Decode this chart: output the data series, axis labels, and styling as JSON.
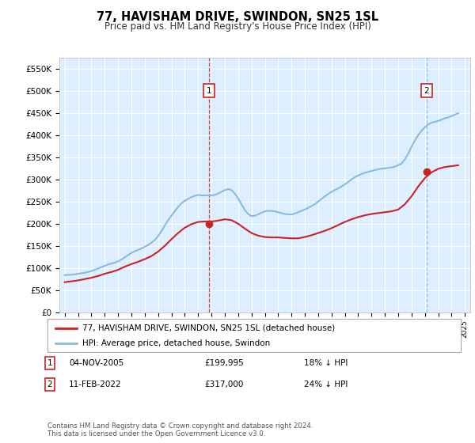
{
  "title": "77, HAVISHAM DRIVE, SWINDON, SN25 1SL",
  "subtitle": "Price paid vs. HM Land Registry's House Price Index (HPI)",
  "bg_color": "#ffffff",
  "plot_bg_color": "#ddeeff",
  "hpi_color": "#88bbdd",
  "price_color": "#cc2222",
  "ylim": [
    0,
    575000
  ],
  "yticks": [
    0,
    50000,
    100000,
    150000,
    200000,
    250000,
    300000,
    350000,
    400000,
    450000,
    500000,
    550000
  ],
  "ytick_labels": [
    "£0",
    "£50K",
    "£100K",
    "£150K",
    "£200K",
    "£250K",
    "£300K",
    "£350K",
    "£400K",
    "£450K",
    "£500K",
    "£550K"
  ],
  "transaction1": {
    "year": 2005.84,
    "price": 199995,
    "label": "1"
  },
  "transaction2": {
    "year": 2022.12,
    "price": 317000,
    "label": "2"
  },
  "legend_house_label": "77, HAVISHAM DRIVE, SWINDON, SN25 1SL (detached house)",
  "legend_hpi_label": "HPI: Average price, detached house, Swindon",
  "note1_label": "1",
  "note1_date": "04-NOV-2005",
  "note1_price": "£199,995",
  "note1_hpi": "18% ↓ HPI",
  "note2_label": "2",
  "note2_date": "11-FEB-2022",
  "note2_price": "£317,000",
  "note2_hpi": "24% ↓ HPI",
  "footer": "Contains HM Land Registry data © Crown copyright and database right 2024.\nThis data is licensed under the Open Government Licence v3.0.",
  "hpi_years": [
    1995,
    1995.25,
    1995.5,
    1995.75,
    1996,
    1996.25,
    1996.5,
    1996.75,
    1997,
    1997.25,
    1997.5,
    1997.75,
    1998,
    1998.25,
    1998.5,
    1998.75,
    1999,
    1999.25,
    1999.5,
    1999.75,
    2000,
    2000.25,
    2000.5,
    2000.75,
    2001,
    2001.25,
    2001.5,
    2001.75,
    2002,
    2002.25,
    2002.5,
    2002.75,
    2003,
    2003.25,
    2003.5,
    2003.75,
    2004,
    2004.25,
    2004.5,
    2004.75,
    2005,
    2005.25,
    2005.5,
    2005.75,
    2006,
    2006.25,
    2006.5,
    2006.75,
    2007,
    2007.25,
    2007.5,
    2007.75,
    2008,
    2008.25,
    2008.5,
    2008.75,
    2009,
    2009.25,
    2009.5,
    2009.75,
    2010,
    2010.25,
    2010.5,
    2010.75,
    2011,
    2011.25,
    2011.5,
    2011.75,
    2012,
    2012.25,
    2012.5,
    2012.75,
    2013,
    2013.25,
    2013.5,
    2013.75,
    2014,
    2014.25,
    2014.5,
    2014.75,
    2015,
    2015.25,
    2015.5,
    2015.75,
    2016,
    2016.25,
    2016.5,
    2016.75,
    2017,
    2017.25,
    2017.5,
    2017.75,
    2018,
    2018.25,
    2018.5,
    2018.75,
    2019,
    2019.25,
    2019.5,
    2019.75,
    2020,
    2020.25,
    2020.5,
    2020.75,
    2021,
    2021.25,
    2021.5,
    2021.75,
    2022,
    2022.25,
    2022.5,
    2022.75,
    2023,
    2023.25,
    2023.5,
    2023.75,
    2024,
    2024.25,
    2024.5
  ],
  "hpi_values": [
    84000,
    84500,
    85000,
    85500,
    87000,
    88000,
    89500,
    91000,
    93000,
    96000,
    99000,
    102000,
    105000,
    108000,
    110000,
    112000,
    115000,
    119000,
    124000,
    129000,
    134000,
    138000,
    141000,
    144000,
    148000,
    152000,
    157000,
    163000,
    172000,
    183000,
    196000,
    208000,
    218000,
    228000,
    238000,
    246000,
    252000,
    256000,
    260000,
    263000,
    265000,
    264000,
    264000,
    264000,
    264000,
    265000,
    268000,
    272000,
    276000,
    278000,
    276000,
    268000,
    257000,
    244000,
    231000,
    222000,
    217000,
    218000,
    221000,
    225000,
    228000,
    229000,
    229000,
    228000,
    226000,
    224000,
    222000,
    221000,
    221000,
    223000,
    226000,
    229000,
    232000,
    236000,
    240000,
    244000,
    250000,
    256000,
    262000,
    267000,
    272000,
    276000,
    280000,
    284000,
    289000,
    294000,
    300000,
    305000,
    309000,
    312000,
    315000,
    317000,
    319000,
    321000,
    323000,
    324000,
    325000,
    326000,
    327000,
    329000,
    332000,
    336000,
    345000,
    358000,
    374000,
    388000,
    400000,
    410000,
    418000,
    424000,
    428000,
    430000,
    432000,
    435000,
    438000,
    440000,
    443000,
    446000,
    450000
  ],
  "price_years": [
    1995,
    1995.5,
    1996,
    1996.5,
    1997,
    1997.5,
    1998,
    1998.5,
    1999,
    1999.5,
    2000,
    2000.5,
    2001,
    2001.5,
    2002,
    2002.5,
    2003,
    2003.5,
    2004,
    2004.5,
    2005,
    2005.5,
    2006,
    2006.5,
    2007,
    2007.5,
    2008,
    2008.5,
    2009,
    2009.5,
    2010,
    2010.5,
    2011,
    2011.5,
    2012,
    2012.5,
    2013,
    2013.5,
    2014,
    2014.5,
    2015,
    2015.5,
    2016,
    2016.5,
    2017,
    2017.5,
    2018,
    2018.5,
    2019,
    2019.5,
    2020,
    2020.5,
    2021,
    2021.5,
    2022,
    2022.5,
    2023,
    2023.5,
    2024,
    2024.5
  ],
  "price_values": [
    68000,
    70000,
    72000,
    75000,
    78000,
    82000,
    87000,
    91000,
    96000,
    103000,
    109000,
    114000,
    120000,
    127000,
    137000,
    150000,
    165000,
    179000,
    191000,
    199000,
    204000,
    205000,
    205000,
    207000,
    210000,
    208000,
    200000,
    189000,
    179000,
    173000,
    170000,
    169000,
    169000,
    168000,
    167000,
    167000,
    170000,
    174000,
    179000,
    184000,
    190000,
    197000,
    204000,
    210000,
    215000,
    219000,
    222000,
    224000,
    226000,
    228000,
    232000,
    244000,
    262000,
    284000,
    303000,
    316000,
    324000,
    328000,
    330000,
    332000
  ]
}
